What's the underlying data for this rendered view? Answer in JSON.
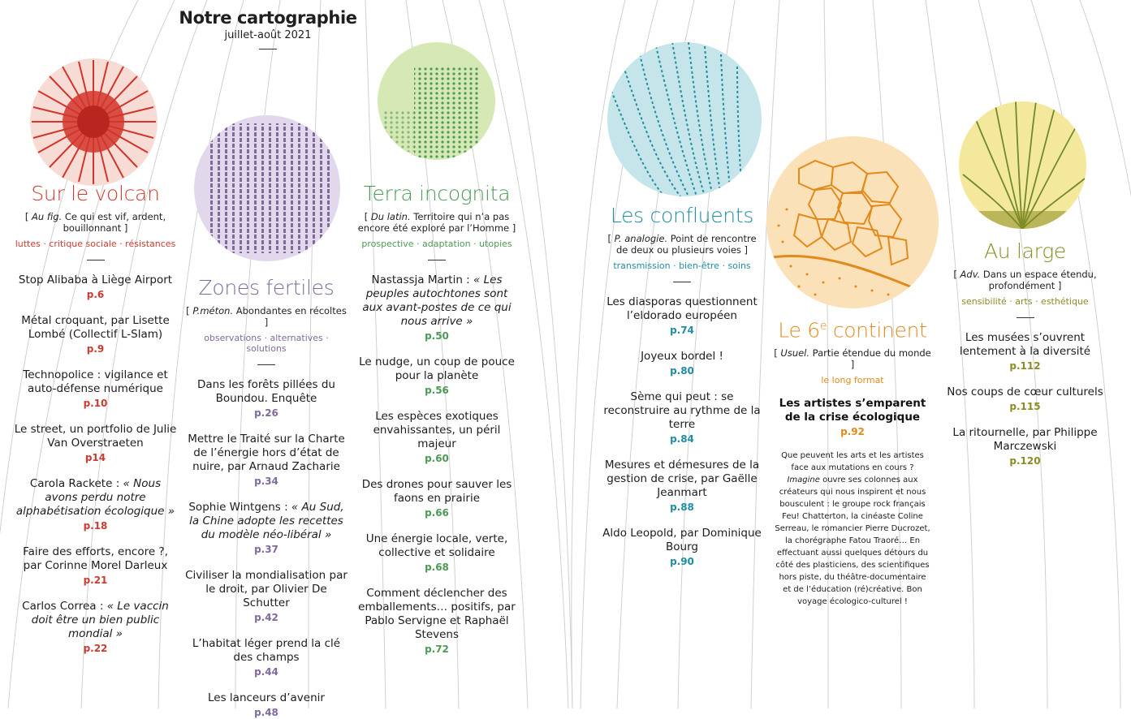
{
  "header": {
    "title": "Notre cartographie",
    "subtitle": "juillet-août 2021"
  },
  "colors": {
    "red": "#cc3b31",
    "violet": "#7f6a9c",
    "green": "#4b9a55",
    "teal": "#1f8ea1",
    "orange": "#e28a1c",
    "olive": "#8a8d22"
  },
  "sections": {
    "volcan": {
      "title": "Sur le volcan",
      "def_abbr": "Au fig.",
      "def": " Ce qui est vif, ardent, bouillonnant ]",
      "tags": "luttes · critique sociale · résistances",
      "articles": [
        {
          "title": "Stop Alibaba à Liège Airport",
          "page": "p.6"
        },
        {
          "title": "Métal croquant, par Lisette Lombé (Collectif L-Slam)",
          "page": "p.9"
        },
        {
          "title": "Technopolice : vigilance et auto-défense numérique",
          "page": "p.10"
        },
        {
          "title": "Le street, un portfolio de Julie Van Overstraeten",
          "page": "p14"
        },
        {
          "title": "Carola Rackete : ",
          "italic": "« Nous avons perdu notre alphabétisation écologique »",
          "page": "p.18"
        },
        {
          "title": "Faire des efforts, encore ?, par Corinne Morel Darleux",
          "page": "p.21"
        },
        {
          "title": "Carlos Correa : ",
          "italic": "« Le vaccin doit être un bien public mondial »",
          "page": "p.22"
        }
      ]
    },
    "zones": {
      "title": "Zones fertiles",
      "def_abbr": "P.méton.",
      "def": " Abondantes en récoltes ]",
      "tags": "observations · alternatives · solutions",
      "articles": [
        {
          "title": "Dans les forêts pillées du Boundou. Enquête",
          "page": "p.26"
        },
        {
          "title": "Mettre le Traité sur la Charte de l’énergie hors d’état de nuire, par Arnaud Zacharie",
          "page": "p.34"
        },
        {
          "title": "Sophie Wintgens : ",
          "italic": "« Au Sud, la Chine adopte les recettes du modèle néo-libéral »",
          "page": "p.37"
        },
        {
          "title": "Civiliser la mondialisation par le droit, par Olivier De Schutter",
          "page": "p.42"
        },
        {
          "title": "L’habitat léger prend la clé des champs",
          "page": "p.44"
        },
        {
          "title": "Les lanceurs d’avenir",
          "page": "p.48"
        }
      ]
    },
    "terra": {
      "title": "Terra incognita",
      "def_abbr": "Du latin.",
      "def": " Territoire qui n’a pas encore été exploré par l’Homme ]",
      "tags": "prospective · adaptation · utopies",
      "articles": [
        {
          "title": "Nastassja Martin : ",
          "italic": "« Les peuples autochtones sont aux avant-postes de ce qui nous arrive »",
          "page": "p.50"
        },
        {
          "title": "Le nudge, un coup de pouce pour la planète",
          "page": "p.56"
        },
        {
          "title": "Les espèces exotiques envahissantes, un péril majeur",
          "page": "p.60"
        },
        {
          "title": "Des drones pour sauver les faons en prairie",
          "page": "p.66"
        },
        {
          "title": "Une énergie locale, verte, collective et solidaire",
          "page": "p.68"
        },
        {
          "title": "Comment déclencher des emballements… positifs, par Pablo Servigne et Raphaël Stevens",
          "page": "p.72"
        }
      ]
    },
    "confluents": {
      "title": "Les confluents",
      "def_abbr": "P. analogie.",
      "def": " Point de rencontre de deux ou plusieurs voies ]",
      "tags": "transmission · bien-être · soins",
      "articles": [
        {
          "title": "Les diasporas questionnent l’eldorado européen",
          "page": "p.74"
        },
        {
          "title": "Joyeux bordel !",
          "page": "p.80"
        },
        {
          "title": "Sème qui peut : se reconstruire au rythme de la terre",
          "page": "p.84"
        },
        {
          "title": "Mesures et démesures de la gestion de crise, par Gaëlle Jeanmart",
          "page": "p.88"
        },
        {
          "title": "Aldo Leopold, par Dominique Bourg",
          "page": "p.90"
        }
      ]
    },
    "continent": {
      "title_pre": "Le 6",
      "title_sup": "e",
      "title_post": " continent",
      "def_abbr": "Usuel.",
      "def": " Partie étendue du monde ]",
      "tags": "le long format",
      "feature": {
        "title": "Les artistes s’emparent de la crise écologique",
        "page": "p.92"
      },
      "long_a": "Que peuvent les arts et les artistes face aux mutations en cours ? ",
      "long_it": "Imagine",
      "long_b": " ouvre ses colonnes aux créateurs qui nous inspirent et nous bousculent : le groupe rock français Feu! Chatterton, la cinéaste Coline Serreau, le romancier Pierre Ducrozet, la chorégraphe Fatou Traoré… En effectuant aussi quelques détours du côté des plasticiens, des scientifiques hors piste, du théâtre-documentaire et de l’éducation (ré)créative.  Bon voyage écologico-culturel !"
    },
    "large": {
      "title": "Au large",
      "def_abbr": "Adv.",
      "def": " Dans un espace étendu, profondément ]",
      "tags": "sensibilité · arts · esthétique",
      "articles": [
        {
          "title": "Les musées s’ouvrent lentement à la diversité",
          "page": "p.112"
        },
        {
          "title": "Nos coups de cœur culturels",
          "page": "p.115"
        },
        {
          "title": "La ritournelle, par Philippe Marczewski",
          "page": "p.120"
        }
      ]
    }
  }
}
